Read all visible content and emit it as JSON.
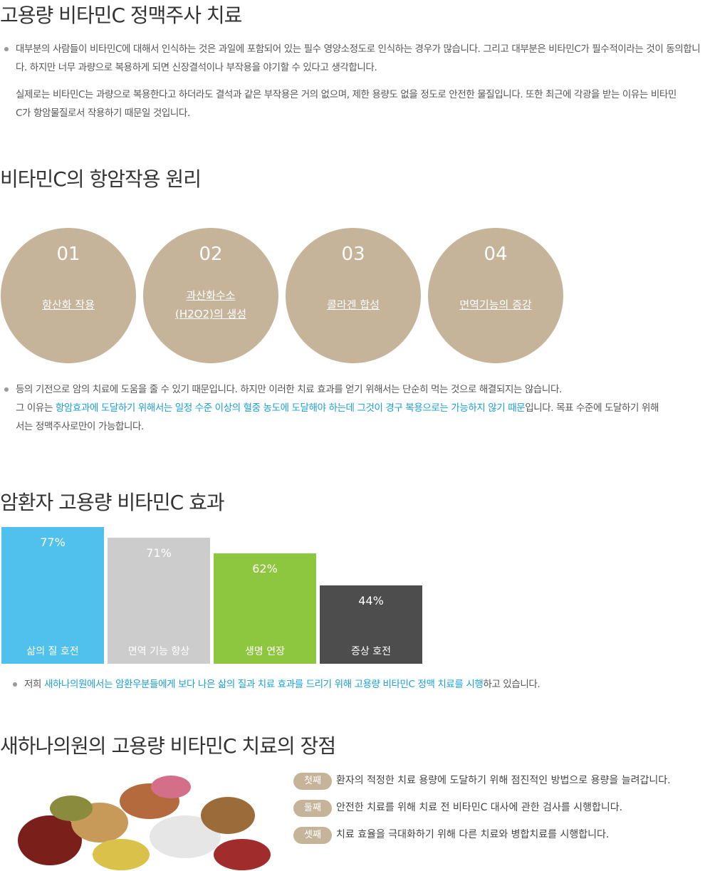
{
  "intro": {
    "title": "고용량 비타민C 정맥주사 치료",
    "paragraphs": [
      "대부분의 사람들이 비타민C에 대해서 인식하는 것은 과일에 포함되어 있는 필수 영양소정도로 인식하는 경우가 많습니다. 그리고 대부분은 비타민C가 필수적이라는 것이 동의합니다. 하지만 너무 과량으로 복용하게 되면 신장결석이나 부작용을 야기할 수 있다고 생각합니다.",
      "실제로는 비타민C는 과량으로 복용한다고 하더라도 결석과 같은 부작용은 거의 없으며, 제한 용량도 없을 정도로 안전한 물질입니다. 또한 최근에 각광을 받는 이유는 비타민C가 항암물질로서 작용하기 때문일 것입니다."
    ]
  },
  "principle": {
    "title": "비타민C의 항암작용 원리",
    "circles": [
      {
        "number": "01",
        "label": [
          "항산화 작용"
        ]
      },
      {
        "number": "02",
        "label": [
          "과산화수소",
          "(H2O2)의 생성"
        ]
      },
      {
        "number": "03",
        "label": [
          "콜라겐 합성"
        ]
      },
      {
        "number": "04",
        "label": [
          "면역기능의 증강"
        ]
      }
    ],
    "note": {
      "line1": "등의 기전으로 암의 치료에 도움을 줄 수 있기 때문입니다. 하지만 이러한 치료 효과를 얻기 위해서는 단순히 먹는 것으로 해결되지는 않습니다.",
      "before": "그 이유는 ",
      "highlight": "항암효과에 도달하기 위해서는 일정 수준 이상의 혈중 농도에 도달해야 하는데 그것이 경구 복용으로는 가능하지 않기 때문",
      "after": "입니다. 목표 수준에 도달하기 위해서는 정맥주사로만이 가능합니다."
    }
  },
  "effects": {
    "title": "암환자 고용량 비타민C 효과",
    "categories": [
      "삶의 질 호전",
      "면역 기능 향상",
      "생명 연장",
      "증상 호전"
    ],
    "values": [
      77,
      71,
      62,
      44
    ],
    "value_labels": [
      "77%",
      "71%",
      "62%",
      "44%"
    ],
    "colors": [
      "#50c1ec",
      "#cccccc",
      "#8dc63f",
      "#4d4d4d"
    ],
    "note": {
      "before": "저희 ",
      "highlight": "새하나의원에서는 암환우분들에게 보다 나은 삶의 질과 치료 효과를 드리기 위해 고용량 비타민C 정맥 치료를 시행",
      "after": "하고 있습니다."
    }
  },
  "advantages": {
    "title": "새하나의원의 고용량 비타민C 치료의 장점",
    "items": [
      {
        "badge": "첫째",
        "text": "환자의 적정한 치료 용량에 도달하기 위해 점진적인 방법으로 용량을 늘려갑니다."
      },
      {
        "badge": "둘째",
        "text": "안전한 치료를 위해 치료 전 비타민C 대사에 관한 검사를 시행합니다."
      },
      {
        "badge": "셋째",
        "text": "치료 효율을 극대화하기 위해 다른 치료와 병합치료를 시행합니다."
      }
    ]
  }
}
